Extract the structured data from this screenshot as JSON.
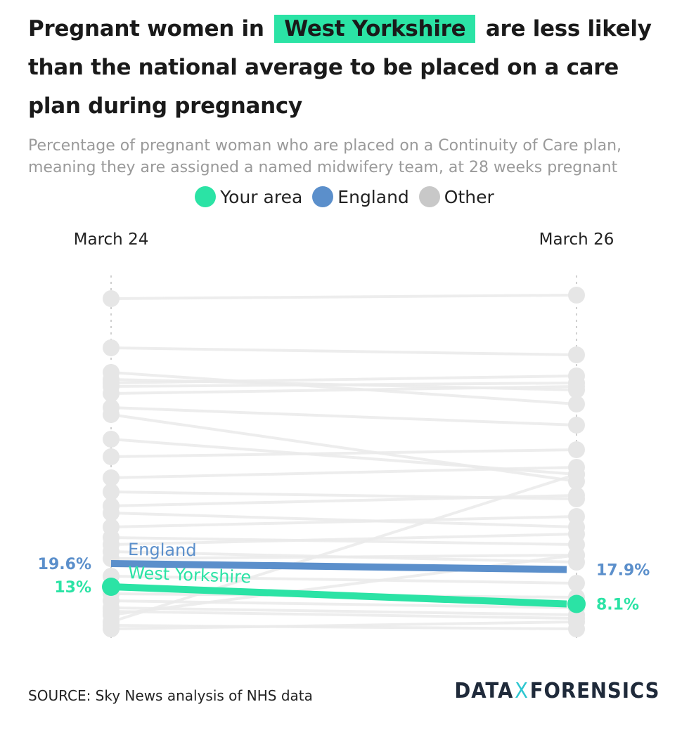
{
  "header": {
    "title_before": "Pregnant women in",
    "title_highlight": "West Yorkshire",
    "title_after": "are less likely than the national average to be placed on a care plan during pregnancy",
    "subtitle": "Percentage of pregnant woman who are placed on a Continuity of Care plan, meaning they are assigned a named midwifery team, at 28 weeks pregnant"
  },
  "legend": [
    {
      "label": "Your area",
      "color": "#2be3a5"
    },
    {
      "label": "England",
      "color": "#5b8fcb"
    },
    {
      "label": "Other",
      "color": "#c8c8c8"
    }
  ],
  "colors": {
    "your_area": "#2be3a5",
    "england": "#5b8fcb",
    "other": "#ebebeb",
    "other_dot": "#e6e6e6"
  },
  "footer": {
    "source": "SOURCE: Sky News analysis of NHS data",
    "logo_left": "DATA",
    "logo_x": "X",
    "logo_right": "FORENSICS"
  },
  "chart_data": {
    "type": "line",
    "x": [
      "March 24",
      "March 26"
    ],
    "ylim": [
      0,
      100
    ],
    "highlight_series": [
      {
        "name": "England",
        "role": "england",
        "values": [
          19.6,
          17.9
        ],
        "labels": [
          "19.6%",
          "17.9%"
        ]
      },
      {
        "name": "West Yorkshire",
        "role": "your_area",
        "values": [
          13,
          8.1
        ],
        "labels": [
          "13%",
          "8.1%"
        ]
      }
    ],
    "other_series": [
      [
        95,
        96
      ],
      [
        81,
        79
      ],
      [
        74,
        65
      ],
      [
        72,
        69
      ],
      [
        71,
        73
      ],
      [
        70,
        71
      ],
      [
        68,
        70
      ],
      [
        64,
        59
      ],
      [
        62,
        43
      ],
      [
        55,
        45
      ],
      [
        50,
        52
      ],
      [
        44,
        47
      ],
      [
        40,
        38
      ],
      [
        36,
        39
      ],
      [
        34,
        30
      ],
      [
        30,
        33
      ],
      [
        27,
        25
      ],
      [
        25,
        28
      ],
      [
        23,
        20
      ],
      [
        21,
        22
      ],
      [
        16,
        14
      ],
      [
        11,
        10
      ],
      [
        9,
        7
      ],
      [
        7,
        5
      ],
      [
        6,
        4
      ],
      [
        5,
        22
      ],
      [
        3,
        45
      ],
      [
        2,
        1
      ],
      [
        1,
        3
      ]
    ]
  }
}
